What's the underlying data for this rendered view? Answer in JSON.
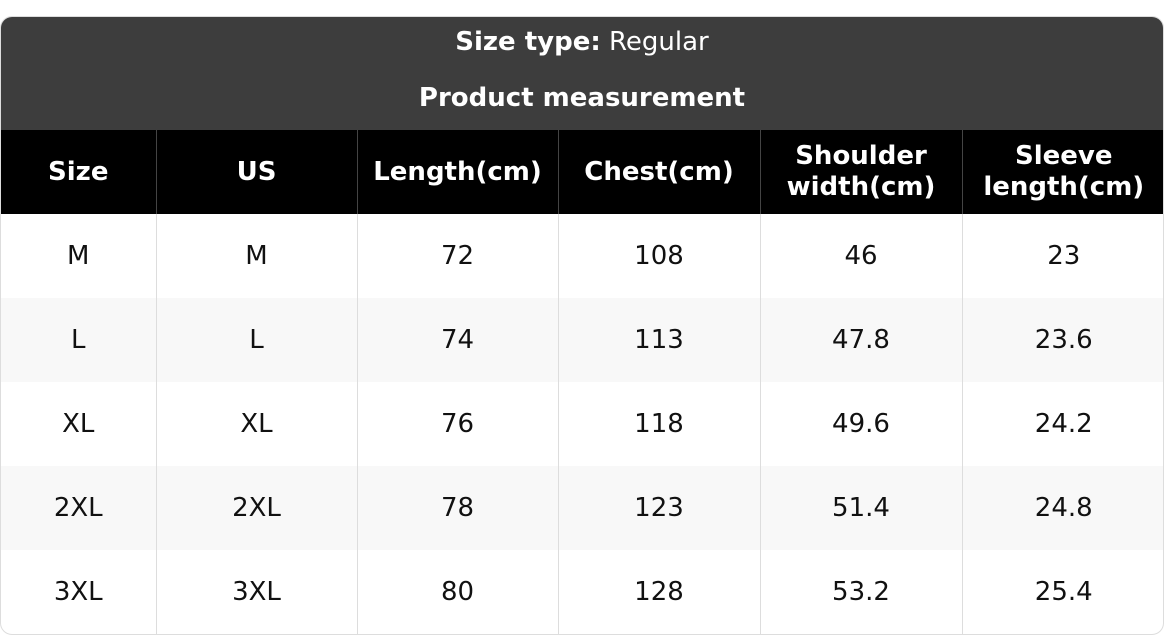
{
  "header": {
    "size_type_label": "Size type:",
    "size_type_value": "Regular",
    "subtitle": "Product measurement"
  },
  "table": {
    "columns": [
      "Size",
      "US",
      "Length(cm)",
      "Chest(cm)",
      "Shoulder width(cm)",
      "Sleeve length(cm)"
    ],
    "rows": [
      [
        "M",
        "M",
        72,
        108,
        46,
        23
      ],
      [
        "L",
        "L",
        74,
        113,
        47.8,
        23.6
      ],
      [
        "XL",
        "XL",
        76,
        118,
        49.6,
        24.2
      ],
      [
        "2XL",
        "2XL",
        78,
        123,
        51.4,
        24.8
      ],
      [
        "3XL",
        "3XL",
        80,
        128,
        53.2,
        25.4
      ]
    ]
  }
}
